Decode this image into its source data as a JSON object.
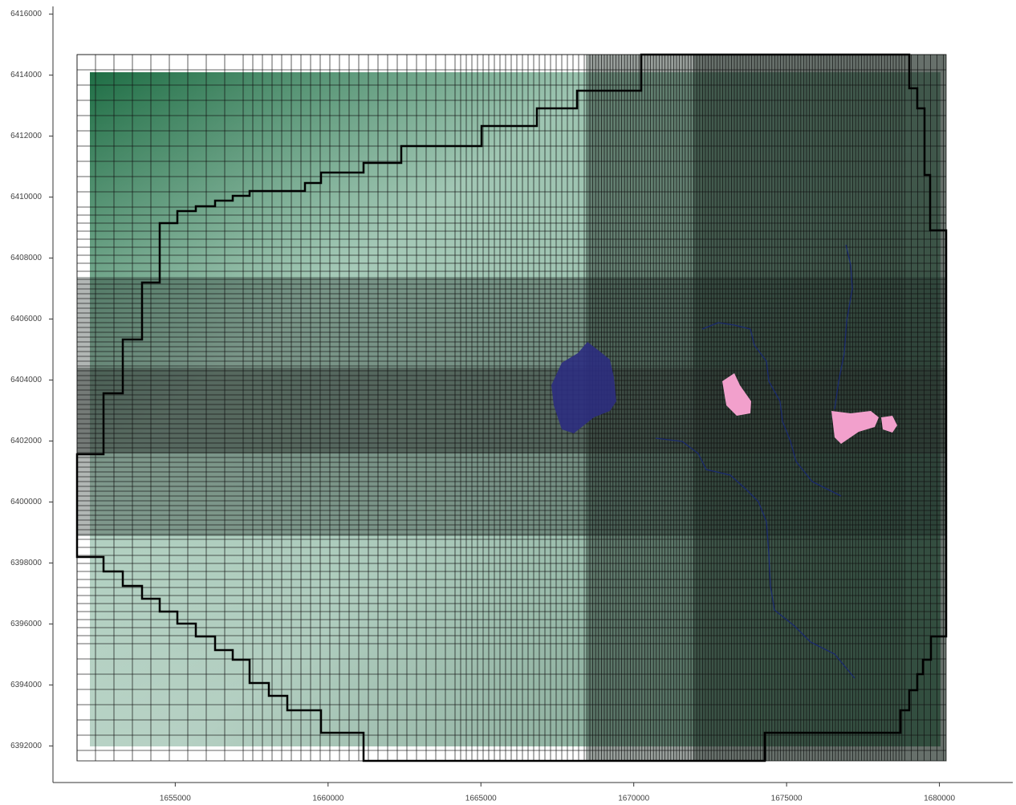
{
  "chart_data": {
    "type": "map",
    "xlim": [
      1651000,
      1682400
    ],
    "ylim": [
      6390800,
      6416200
    ],
    "xticks": [
      1655000,
      1660000,
      1665000,
      1670000,
      1675000,
      1680000
    ],
    "yticks": [
      6392000,
      6394000,
      6396000,
      6398000,
      6400000,
      6402000,
      6404000,
      6406000,
      6408000,
      6410000,
      6412000,
      6414000,
      6416000
    ]
  }
}
